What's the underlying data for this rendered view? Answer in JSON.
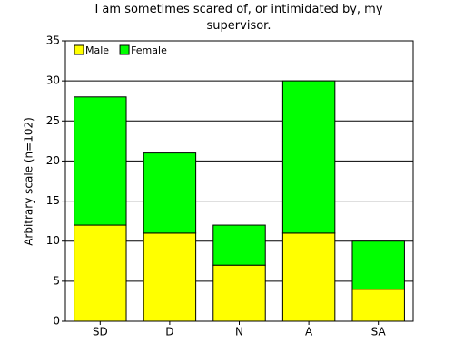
{
  "chart_data": {
    "type": "stacked_bar",
    "title": "I am sometimes scared of, or intimidated by, my supervisor.",
    "y_label": "Arbitrary scale (n=102)",
    "categories": [
      "SD",
      "D",
      "N",
      "A",
      "SA"
    ],
    "series": [
      {
        "name": "Male",
        "color": "#ffff00",
        "values": [
          12,
          11,
          7,
          11,
          4
        ]
      },
      {
        "name": "Female",
        "color": "#00ff00",
        "values": [
          16,
          10,
          5,
          19,
          6
        ]
      }
    ],
    "ylim": [
      0,
      35
    ],
    "yticks": [
      0,
      5,
      10,
      15,
      20,
      25,
      30,
      35
    ],
    "grid": true,
    "legend": "top-left"
  }
}
